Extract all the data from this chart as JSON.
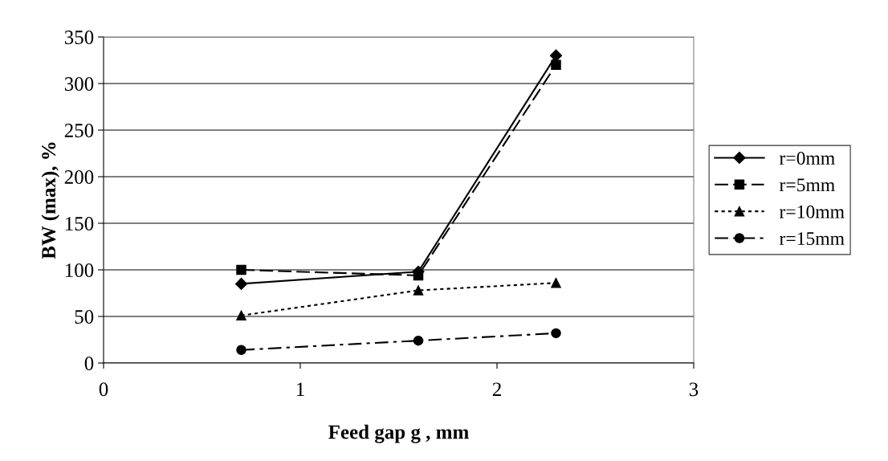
{
  "chart_data": {
    "type": "line",
    "xlabel": "Feed gap g , mm",
    "ylabel": "BW (max), %",
    "xlim": [
      0,
      3
    ],
    "xticks": [
      0,
      1,
      2,
      3
    ],
    "ylim": [
      0,
      350
    ],
    "yticks": [
      0,
      50,
      100,
      150,
      200,
      250,
      300,
      350
    ],
    "grid": "y",
    "legend": "right",
    "series": [
      {
        "name": "r=0mm",
        "color": "#000000",
        "marker": "diamond",
        "line_style": "solid",
        "x": [
          0.7,
          1.6,
          2.3
        ],
        "values": [
          85,
          98,
          330
        ]
      },
      {
        "name": "r=5mm",
        "color": "#000000",
        "marker": "square",
        "line_style": "dashed",
        "x": [
          0.7,
          1.6,
          2.3
        ],
        "values": [
          100,
          94,
          320
        ]
      },
      {
        "name": "r=10mm",
        "color": "#000000",
        "marker": "triangle",
        "line_style": "dotted",
        "x": [
          0.7,
          1.6,
          2.3
        ],
        "values": [
          51,
          78,
          86
        ]
      },
      {
        "name": "r=15mm",
        "color": "#000000",
        "marker": "circle",
        "line_style": "dashdot",
        "x": [
          0.7,
          1.6,
          2.3
        ],
        "values": [
          14,
          24,
          32
        ]
      }
    ]
  }
}
